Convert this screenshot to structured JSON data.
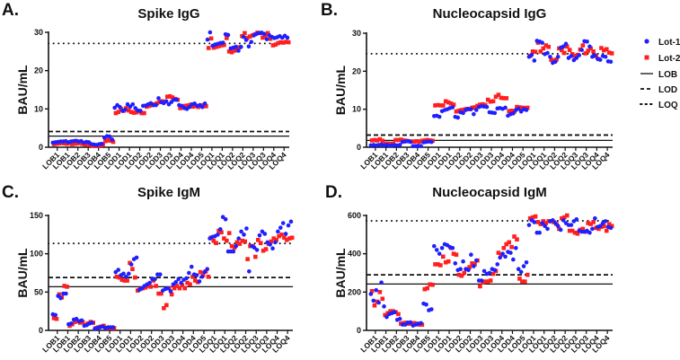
{
  "legend": {
    "lot1": "Lot-1",
    "lot2": "Lot-2",
    "lob": "LOB",
    "lod": "LOD",
    "loq": "LOQ"
  },
  "colors": {
    "lot1": "#1f1fff",
    "lot2": "#ff1f1f",
    "axis": "#111111"
  },
  "chart_data": [
    {
      "panel": "A.",
      "type": "scatter",
      "title": "Spike IgG",
      "ylabel": "BAU/mL",
      "xlabel": "",
      "ylim": [
        0,
        30
      ],
      "yticks": [
        0,
        10,
        20,
        30
      ],
      "categories": [
        "LOB1",
        "LOB1",
        "LOB2",
        "LOB3",
        "LOB4",
        "LOB5",
        "LOD1",
        "LOD1",
        "LOD2",
        "LOD2",
        "LOD3",
        "LOD3",
        "LOD4",
        "LOD4",
        "LOD5",
        "LOQ1",
        "LOQ1",
        "LOQ2",
        "LOQ2",
        "LOQ3",
        "LOQ3",
        "LOQ4",
        "LOQ4"
      ],
      "points_per_category": 4,
      "thresholds": {
        "LOB": 2.9,
        "LOD": 4.1,
        "LOQ": 27.1
      },
      "series": [
        {
          "name": "Lot-1",
          "values": [
            1.2,
            1.3,
            1.4,
            1.5,
            1.5,
            1.6,
            1.3,
            1.5,
            1.6,
            1.7,
            1.5,
            1.6,
            1.2,
            1.4,
            1.3,
            0.8,
            0.7,
            0.6,
            0.8,
            0.9,
            2.5,
            2.9,
            2.8,
            2.0,
            10.3,
            11.0,
            10.5,
            9.5,
            9.8,
            11.2,
            10.6,
            11.2,
            10.2,
            9.6,
            9.5,
            10.8,
            10.9,
            11.2,
            11.5,
            11.0,
            11.0,
            12.8,
            11.8,
            11.5,
            12.0,
            11.2,
            11.8,
            12.4,
            12.4,
            11.0,
            10.8,
            10.2,
            10.0,
            10.5,
            11.2,
            11.4,
            10.8,
            11.0,
            10.5,
            11.4,
            28.1,
            30.0,
            26.5,
            26.8,
            27.0,
            27.2,
            27.3,
            29.5,
            29.3,
            25.8,
            26.0,
            26.2,
            25.2,
            26.2,
            28.8,
            28.0,
            26.3,
            27.5,
            29.2,
            29.6,
            29.8,
            29.9,
            29.6,
            28.2,
            29.2,
            28.8,
            28.5,
            28.7,
            29.0,
            28.6,
            29.1,
            28.6
          ]
        },
        {
          "name": "Lot-2",
          "values": [
            0.8,
            0.9,
            1.0,
            1.1,
            1.0,
            0.9,
            1.1,
            0.8,
            0.9,
            1.0,
            1.1,
            0.9,
            0.7,
            0.8,
            0.6,
            0.4,
            0.3,
            0.4,
            0.5,
            0.6,
            1.6,
            1.8,
            1.7,
            1.4,
            8.9,
            9.2,
            10.0,
            9.5,
            10.2,
            9.6,
            9.2,
            9.0,
            9.1,
            9.4,
            8.9,
            8.9,
            10.6,
            10.8,
            11.0,
            11.2,
            11.5,
            11.8,
            12.0,
            11.9,
            13.2,
            13.3,
            13.0,
            12.6,
            12.4,
            10.2,
            10.5,
            10.8,
            10.9,
            11.1,
            10.6,
            10.8,
            10.5,
            10.9,
            11.0,
            10.7,
            25.9,
            28.4,
            26.0,
            26.2,
            26.4,
            26.6,
            26.7,
            28.5,
            25.0,
            24.8,
            25.2,
            25.4,
            26.1,
            29.0,
            29.8,
            28.5,
            28.9,
            29.2,
            29.5,
            29.9,
            29.8,
            28.6,
            29.0,
            29.8,
            28.3,
            26.6,
            26.8,
            27.2,
            27.4,
            27.3,
            27.5,
            27.4
          ]
        }
      ]
    },
    {
      "panel": "B.",
      "type": "scatter",
      "title": "Nucleocapsid IgG",
      "ylabel": "BAU/mL",
      "xlabel": "",
      "ylim": [
        0,
        30
      ],
      "yticks": [
        0,
        10,
        20,
        30
      ],
      "categories": [
        "LOB1",
        "LOB1",
        "LOB2",
        "LOB3",
        "LOB4",
        "LOB5",
        "LOD1",
        "LOD1",
        "LOD2",
        "LOD2",
        "LOD3",
        "LOD3",
        "LOD4",
        "LOD4",
        "LOD5",
        "LOQ1",
        "LOQ1",
        "LOQ2",
        "LOQ2",
        "LOQ3",
        "LOQ3",
        "LOQ4",
        "LOQ4"
      ],
      "points_per_category": 4,
      "thresholds": {
        "LOB": 1.8,
        "LOD": 3.2,
        "LOQ": 24.6
      },
      "series": [
        {
          "name": "Lot-1",
          "values": [
            0.5,
            0.6,
            0.5,
            0.6,
            0.7,
            0.5,
            0.6,
            0.4,
            0.5,
            0.6,
            0.5,
            0.6,
            1.4,
            1.5,
            1.6,
            1.4,
            0.3,
            0.3,
            0.4,
            0.3,
            1.3,
            1.4,
            1.5,
            1.4,
            8.2,
            8.3,
            8.0,
            9.5,
            9.8,
            10.0,
            10.3,
            10.5,
            8.0,
            7.8,
            9.2,
            9.0,
            9.8,
            10.1,
            10.0,
            8.7,
            9.8,
            10.6,
            10.8,
            10.7,
            10.6,
            9.2,
            9.1,
            9.0,
            10.2,
            10.3,
            10.1,
            10.4,
            8.3,
            8.7,
            8.9,
            9.8,
            10.1,
            9.4,
            10.0,
            9.8,
            23.8,
            24.3,
            22.8,
            28.0,
            27.8,
            27.5,
            24.5,
            24.8,
            23.8,
            22.2,
            22.5,
            23.8,
            26.2,
            26.5,
            27.2,
            23.5,
            24.0,
            22.9,
            23.5,
            24.2,
            25.6,
            27.9,
            27.8,
            26.5,
            23.8,
            24.2,
            23.3,
            23.0,
            24.0,
            23.8,
            22.6,
            22.5
          ]
        },
        {
          "name": "Lot-2",
          "values": [
            1.8,
            1.9,
            1.8,
            2.1,
            1.7,
            1.0,
            1.0,
            0.9,
            1.0,
            1.9,
            1.9,
            2.0,
            1.8,
            1.7,
            1.6,
            1.5,
            1.5,
            1.6,
            1.5,
            1.7,
            1.8,
            1.9,
            1.8,
            1.7,
            11.0,
            11.1,
            11.0,
            11.0,
            12.1,
            11.8,
            11.5,
            11.2,
            9.4,
            9.6,
            9.8,
            9.9,
            10.1,
            10.0,
            10.4,
            10.5,
            10.9,
            11.2,
            11.3,
            11.1,
            12.5,
            12.0,
            12.1,
            13.3,
            13.8,
            13.0,
            12.9,
            12.9,
            9.5,
            9.6,
            9.4,
            10.6,
            10.5,
            10.4,
            10.3,
            10.4,
            24.0,
            25.2,
            25.1,
            27.5,
            25.2,
            26.0,
            26.8,
            26.4,
            23.0,
            22.8,
            23.1,
            26.0,
            25.5,
            24.8,
            26.5,
            25.6,
            24.5,
            24.0,
            24.3,
            25.7,
            26.8,
            24.7,
            25.4,
            26.0,
            25.2,
            24.0,
            23.2,
            26.1,
            25.5,
            25.8,
            24.9,
            24.7
          ]
        }
      ]
    },
    {
      "panel": "C.",
      "type": "scatter",
      "title": "Spike IgM",
      "ylabel": "BAU/mL",
      "xlabel": "",
      "ylim": [
        0,
        150
      ],
      "yticks": [
        0,
        50,
        100,
        150
      ],
      "categories": [
        "LOB1",
        "LOB1",
        "LOB2",
        "LOB3",
        "LOB4",
        "LOB5",
        "LOD1",
        "LOD1",
        "LOD2",
        "LOD2",
        "LOD3",
        "LOD3",
        "LOD4",
        "LOD4",
        "LOD5",
        "LOQ1",
        "LOQ1",
        "LOQ2",
        "LOQ2",
        "LOQ3",
        "LOQ3",
        "LOQ4",
        "LOQ4"
      ],
      "points_per_category": 4,
      "thresholds": {
        "LOB": 57,
        "LOD": 69,
        "LOQ": 113.5
      },
      "series": [
        {
          "name": "Lot-1",
          "values": [
            21,
            20,
            45,
            42,
            48,
            48,
            8,
            9,
            14,
            15,
            12,
            13,
            6,
            7,
            9,
            10,
            2,
            3,
            4,
            5,
            3,
            4,
            4,
            4,
            76,
            79,
            72,
            74,
            70,
            74,
            86,
            93,
            95,
            53,
            55,
            58,
            60,
            62,
            67,
            67,
            73,
            73,
            52,
            54,
            55,
            51,
            60,
            63,
            67,
            62,
            66,
            68,
            75,
            83,
            73,
            72,
            64,
            70,
            76,
            80,
            120,
            122,
            123,
            125,
            132,
            148,
            145,
            103,
            103,
            103,
            110,
            120,
            129,
            125,
            133,
            77,
            110,
            108,
            105,
            124,
            129,
            126,
            115,
            112,
            107,
            115,
            129,
            134,
            140,
            126,
            137,
            142
          ]
        },
        {
          "name": "Lot-2",
          "values": [
            16,
            15,
            47,
            43,
            58,
            57,
            6,
            8,
            11,
            12,
            10,
            11,
            7,
            9,
            11,
            10,
            3,
            4,
            5,
            6,
            3,
            3,
            3,
            3,
            70,
            69,
            66,
            65,
            65,
            88,
            80,
            69,
            52,
            54,
            55,
            56,
            58,
            57,
            65,
            58,
            48,
            48,
            29,
            33,
            55,
            47,
            55,
            58,
            55,
            59,
            55,
            62,
            60,
            70,
            65,
            63,
            76,
            72,
            77,
            70,
            121,
            117,
            114,
            130,
            128,
            120,
            117,
            127,
            110,
            108,
            115,
            113,
            117,
            116,
            93,
            110,
            110,
            96,
            118,
            114,
            104,
            106,
            113,
            116,
            120,
            118,
            123,
            125,
            121,
            118,
            120,
            121
          ]
        }
      ]
    },
    {
      "panel": "D.",
      "type": "scatter",
      "title": "Nucleocapsid IgM",
      "ylabel": "BAU/mL",
      "xlabel": "",
      "ylim": [
        0,
        600
      ],
      "yticks": [
        0,
        200,
        400,
        600
      ],
      "categories": [
        "LOB1",
        "LOB1",
        "LOB2",
        "LOB3",
        "LOB4",
        "LOB5",
        "LOD1",
        "LOD1",
        "LOD2",
        "LOD2",
        "LOD3",
        "LOD3",
        "LOD4",
        "LOD4",
        "LOD5",
        "LOQ1",
        "LOQ1",
        "LOQ2",
        "LOQ2",
        "LOQ3",
        "LOQ3",
        "LOQ4",
        "LOQ4"
      ],
      "points_per_category": 4,
      "thresholds": {
        "LOB": 242,
        "LOD": 290,
        "LOQ": 572
      },
      "series": [
        {
          "name": "Lot-1",
          "values": [
            190,
            155,
            210,
            145,
            250,
            125,
            70,
            85,
            90,
            95,
            55,
            60,
            30,
            30,
            40,
            42,
            25,
            30,
            35,
            38,
            140,
            135,
            105,
            110,
            440,
            420,
            400,
            430,
            450,
            445,
            435,
            430,
            350,
            315,
            320,
            360,
            320,
            315,
            395,
            335,
            365,
            260,
            260,
            310,
            295,
            300,
            320,
            315,
            345,
            380,
            400,
            385,
            410,
            405,
            370,
            430,
            320,
            305,
            335,
            355,
            550,
            575,
            565,
            510,
            510,
            560,
            545,
            530,
            570,
            575,
            560,
            545,
            525,
            575,
            560,
            550,
            550,
            570,
            580,
            520,
            515,
            515,
            520,
            510,
            530,
            585,
            540,
            545,
            560,
            570,
            540,
            535
          ]
        },
        {
          "name": "Lot-2",
          "values": [
            205,
            130,
            150,
            200,
            165,
            80,
            90,
            100,
            100,
            95,
            85,
            35,
            38,
            40,
            35,
            35,
            38,
            35,
            30,
            30,
            215,
            220,
            240,
            238,
            345,
            345,
            340,
            385,
            355,
            360,
            430,
            400,
            395,
            290,
            285,
            300,
            320,
            330,
            350,
            345,
            365,
            230,
            250,
            255,
            255,
            260,
            295,
            310,
            405,
            395,
            430,
            450,
            460,
            435,
            490,
            475,
            270,
            255,
            255,
            290,
            585,
            590,
            595,
            565,
            555,
            570,
            560,
            570,
            570,
            565,
            555,
            530,
            585,
            590,
            600,
            520,
            520,
            510,
            505,
            525,
            530,
            515,
            560,
            555,
            565,
            535,
            530,
            540,
            545,
            520,
            555,
            545
          ]
        }
      ]
    }
  ]
}
